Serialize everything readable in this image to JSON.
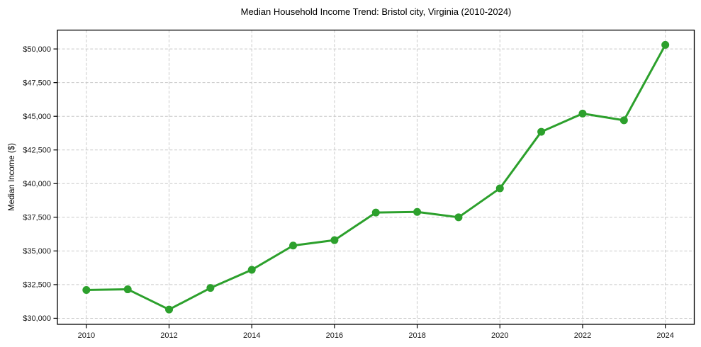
{
  "figure": {
    "title": "Median Household Income Trend: Bristol city, Virginia (2010-2024)",
    "ylabel": "Median Income ($)"
  },
  "chart_data": {
    "type": "line",
    "title": "Median Household Income Trend: Bristol city, Virginia (2010-2024)",
    "xlabel": "",
    "ylabel": "Median Income ($)",
    "series_name": "Median household income",
    "x": [
      2010,
      2011,
      2012,
      2013,
      2014,
      2015,
      2016,
      2017,
      2018,
      2019,
      2020,
      2021,
      2022,
      2023,
      2024
    ],
    "values": [
      32100,
      32150,
      30650,
      32250,
      33600,
      35400,
      35800,
      37850,
      37900,
      37500,
      39650,
      43850,
      45200,
      44700,
      50300
    ],
    "xticks": [
      2010,
      2012,
      2014,
      2016,
      2018,
      2020,
      2022,
      2024
    ],
    "yticks": [
      30000,
      32500,
      35000,
      37500,
      40000,
      42500,
      45000,
      47500,
      50000
    ],
    "ytick_labels": [
      "$30,000",
      "$32,500",
      "$35,000",
      "$37,500",
      "$40,000",
      "$42,500",
      "$45,000",
      "$47,500",
      "$50,000"
    ],
    "xlim": [
      2009.3,
      2024.7
    ],
    "ylim": [
      29550,
      51400
    ],
    "grid": true,
    "legend": "none",
    "line_color": "#2ca02c",
    "marker": "circle"
  }
}
